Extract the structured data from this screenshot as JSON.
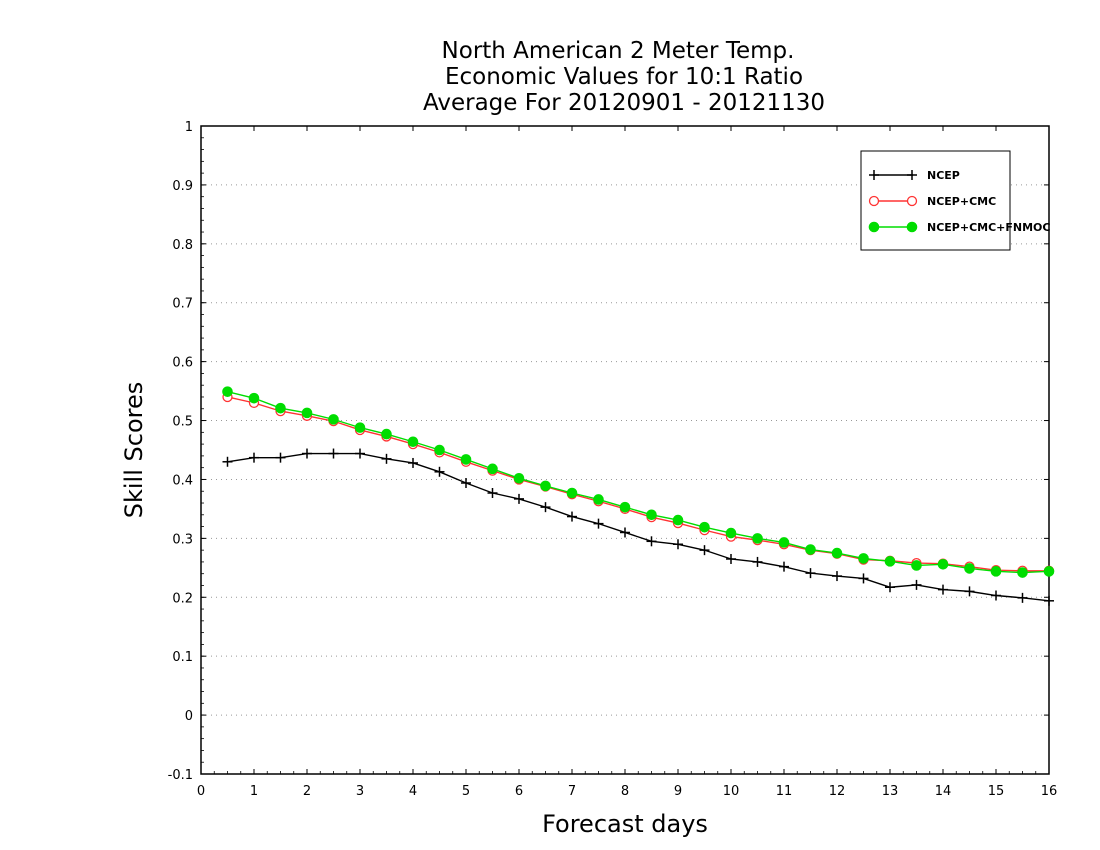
{
  "chart_data": {
    "type": "line",
    "title": [
      "North American 2 Meter Temp.",
      "Economic Values for 10:1 Ratio",
      "Average For 20120901 - 20121130"
    ],
    "xlabel": "Forecast days",
    "ylabel": "Skill Scores",
    "xlim": [
      0,
      16
    ],
    "ylim": [
      -0.1,
      1
    ],
    "xticks": [
      "0",
      "1",
      "2",
      "3",
      "4",
      "5",
      "6",
      "7",
      "8",
      "9",
      "10",
      "11",
      "12",
      "13",
      "14",
      "15",
      "16"
    ],
    "yticks": [
      "-0.1",
      "0",
      "0.1",
      "0.2",
      "0.3",
      "0.4",
      "0.5",
      "0.6",
      "0.7",
      "0.8",
      "0.9",
      "1"
    ],
    "grid": "horizontal dotted",
    "legend_position": "top-right",
    "x": [
      0.5,
      1,
      1.5,
      2,
      2.5,
      3,
      3.5,
      4,
      4.5,
      5,
      5.5,
      6,
      6.5,
      7,
      7.5,
      8,
      8.5,
      9,
      9.5,
      10,
      10.5,
      11,
      11.5,
      12,
      12.5,
      13,
      13.5,
      14,
      14.5,
      15,
      15.5,
      16
    ],
    "series": [
      {
        "name": "NCEP",
        "color": "#000000",
        "marker": "plus",
        "values": [
          0.43,
          0.437,
          0.437,
          0.444,
          0.444,
          0.444,
          0.435,
          0.428,
          0.413,
          0.394,
          0.377,
          0.367,
          0.353,
          0.337,
          0.325,
          0.31,
          0.295,
          0.29,
          0.28,
          0.265,
          0.26,
          0.252,
          0.241,
          0.236,
          0.232,
          0.217,
          0.221,
          0.213,
          0.21,
          0.203,
          0.199,
          0.194
        ]
      },
      {
        "name": "NCEP+CMC",
        "color": "#ff3333",
        "marker": "open-circle",
        "values": [
          0.54,
          0.53,
          0.516,
          0.508,
          0.499,
          0.484,
          0.473,
          0.46,
          0.446,
          0.43,
          0.415,
          0.4,
          0.388,
          0.375,
          0.363,
          0.35,
          0.336,
          0.326,
          0.314,
          0.303,
          0.297,
          0.29,
          0.28,
          0.274,
          0.264,
          0.262,
          0.258,
          0.257,
          0.252,
          0.246,
          0.245,
          0.245
        ]
      },
      {
        "name": "NCEP+CMC+FNMOC",
        "color": "#00dd00",
        "marker": "filled-circle",
        "values": [
          0.549,
          0.538,
          0.521,
          0.513,
          0.502,
          0.488,
          0.477,
          0.464,
          0.45,
          0.434,
          0.418,
          0.402,
          0.389,
          0.377,
          0.366,
          0.353,
          0.34,
          0.331,
          0.319,
          0.309,
          0.3,
          0.293,
          0.281,
          0.275,
          0.266,
          0.261,
          0.254,
          0.256,
          0.249,
          0.244,
          0.242,
          0.244
        ]
      }
    ]
  }
}
